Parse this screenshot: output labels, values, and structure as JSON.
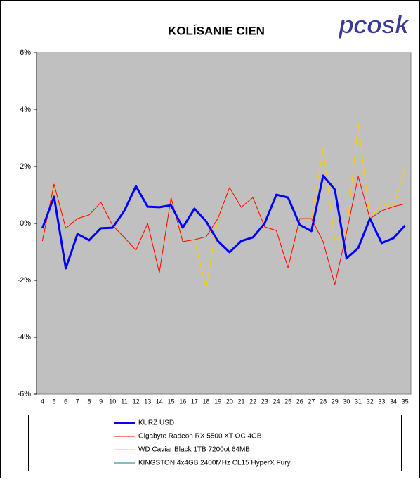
{
  "chart_data": {
    "type": "line",
    "title": "KOLÍSANIE CIEN",
    "logo": "pcosk",
    "categories": [
      4,
      5,
      6,
      7,
      8,
      9,
      10,
      11,
      12,
      13,
      14,
      15,
      16,
      17,
      18,
      19,
      20,
      21,
      22,
      23,
      24,
      25,
      26,
      27,
      28,
      29,
      30,
      31,
      32,
      33,
      34,
      35
    ],
    "series": [
      {
        "name": "KURZ USD",
        "color": "#0000ff",
        "values": [
          -0.17,
          0.94,
          -1.58,
          -0.37,
          -0.59,
          -0.17,
          -0.15,
          0.44,
          1.31,
          0.59,
          0.57,
          0.64,
          -0.15,
          0.52,
          0.07,
          -0.62,
          -1.01,
          -0.62,
          -0.49,
          0,
          1.01,
          0.91,
          -0.05,
          -0.27,
          1.68,
          1.19,
          -1.23,
          -0.86,
          0.17,
          -0.69,
          -0.52,
          -0.07
        ]
      },
      {
        "name": "Gigabyte Radeon RX 5500 XT OC 4GB",
        "color": "#ff0000",
        "values": [
          -0.62,
          1.38,
          -0.17,
          0.17,
          0.3,
          0.74,
          -0.07,
          -0.49,
          -0.94,
          0,
          -1.73,
          0.91,
          -0.64,
          -0.57,
          -0.47,
          0.17,
          1.26,
          0.57,
          0.91,
          -0.12,
          -0.25,
          -1.56,
          0.17,
          0.17,
          -0.64,
          -2.15,
          -0.32,
          1.65,
          0.17,
          0.44,
          0.59,
          0.69
        ]
      },
      {
        "name": "WD Caviar Black 1TB 7200ot 64MB",
        "color": "#ffcc00",
        "values": [
          -0.62,
          1.31,
          -0.17,
          0.17,
          0.3,
          0.74,
          -0.07,
          -0.49,
          -0.94,
          0,
          -1.73,
          0.91,
          -0.64,
          -0.57,
          -2.27,
          0.17,
          1.26,
          0.57,
          0.91,
          -0.12,
          -0.25,
          -1.56,
          0.17,
          0.17,
          2.62,
          -0.6,
          -0.3,
          3.51,
          0.17,
          0.69,
          0.57,
          1.93
        ]
      },
      {
        "name": "KINGSTON 4x4GB 2400MHz CL15 HyperX Fury",
        "color": "#008080",
        "values": [
          null,
          null,
          null,
          null,
          null,
          null,
          null,
          null,
          null,
          null,
          null,
          null,
          null,
          null,
          null,
          null,
          null,
          null,
          null,
          null,
          null,
          null,
          null,
          null,
          null,
          null,
          null,
          null,
          null,
          null,
          null,
          null
        ]
      }
    ],
    "ylim": [
      -6,
      6
    ],
    "yticks": [
      {
        "value": -6,
        "label": "-6%"
      },
      {
        "value": -4,
        "label": "-4%"
      },
      {
        "value": -2,
        "label": "-2%"
      },
      {
        "value": 0,
        "label": "0%"
      },
      {
        "value": 2,
        "label": "2%"
      },
      {
        "value": 4,
        "label": "4%"
      },
      {
        "value": 6,
        "label": "6%"
      }
    ],
    "grid": false,
    "plot_background": "#c0c0c0"
  }
}
